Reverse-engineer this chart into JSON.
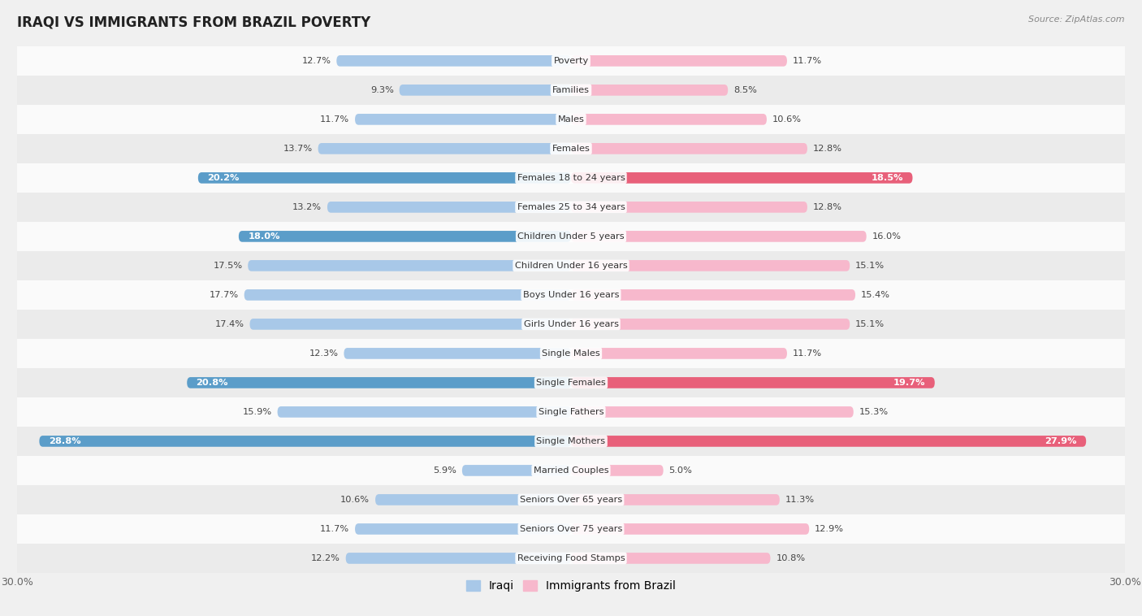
{
  "title": "IRAQI VS IMMIGRANTS FROM BRAZIL POVERTY",
  "source": "Source: ZipAtlas.com",
  "categories": [
    "Poverty",
    "Families",
    "Males",
    "Females",
    "Females 18 to 24 years",
    "Females 25 to 34 years",
    "Children Under 5 years",
    "Children Under 16 years",
    "Boys Under 16 years",
    "Girls Under 16 years",
    "Single Males",
    "Single Females",
    "Single Fathers",
    "Single Mothers",
    "Married Couples",
    "Seniors Over 65 years",
    "Seniors Over 75 years",
    "Receiving Food Stamps"
  ],
  "iraqi": [
    12.7,
    9.3,
    11.7,
    13.7,
    20.2,
    13.2,
    18.0,
    17.5,
    17.7,
    17.4,
    12.3,
    20.8,
    15.9,
    28.8,
    5.9,
    10.6,
    11.7,
    12.2
  ],
  "brazil": [
    11.7,
    8.5,
    10.6,
    12.8,
    18.5,
    12.8,
    16.0,
    15.1,
    15.4,
    15.1,
    11.7,
    19.7,
    15.3,
    27.9,
    5.0,
    11.3,
    12.9,
    10.8
  ],
  "iraqi_color_normal": "#a8c8e8",
  "iraqi_color_highlight": "#5b9dc9",
  "brazil_color_normal": "#f7b8cc",
  "brazil_color_highlight": "#e8607a",
  "iraqi_highlight": [
    4,
    6,
    11,
    13
  ],
  "brazil_highlight": [
    4,
    11,
    13
  ],
  "axis_limit": 30.0,
  "background_color": "#f0f0f0",
  "row_colors": [
    "#fafafa",
    "#ebebeb"
  ]
}
